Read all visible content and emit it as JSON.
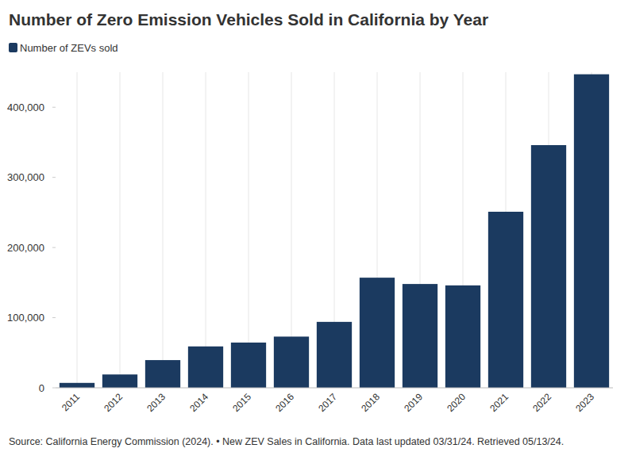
{
  "chart_data": {
    "type": "bar",
    "title": "Number of Zero Emission Vehicles Sold in California by Year",
    "categories": [
      "2011",
      "2012",
      "2013",
      "2014",
      "2015",
      "2016",
      "2017",
      "2018",
      "2019",
      "2020",
      "2021",
      "2022",
      "2023"
    ],
    "series": [
      {
        "name": "Number of ZEVs sold",
        "color": "#1b3a60",
        "values": [
          7000,
          19000,
          39500,
          59000,
          64500,
          73000,
          94000,
          157000,
          148000,
          146000,
          251000,
          346000,
          447000
        ]
      }
    ],
    "ylim": [
      0,
      450000
    ],
    "yticks": [
      0,
      {
        "value": 100000,
        "label": "100,000"
      },
      {
        "value": 200000,
        "label": "200,000"
      },
      {
        "value": 300000,
        "label": "300,000"
      },
      {
        "value": 400000,
        "label": "400,000"
      }
    ],
    "grid": true,
    "source": "Source: California Energy Commission (2024). • New ZEV Sales in California. Data last updated 03/31/24. Retrieved 05/13/24."
  }
}
